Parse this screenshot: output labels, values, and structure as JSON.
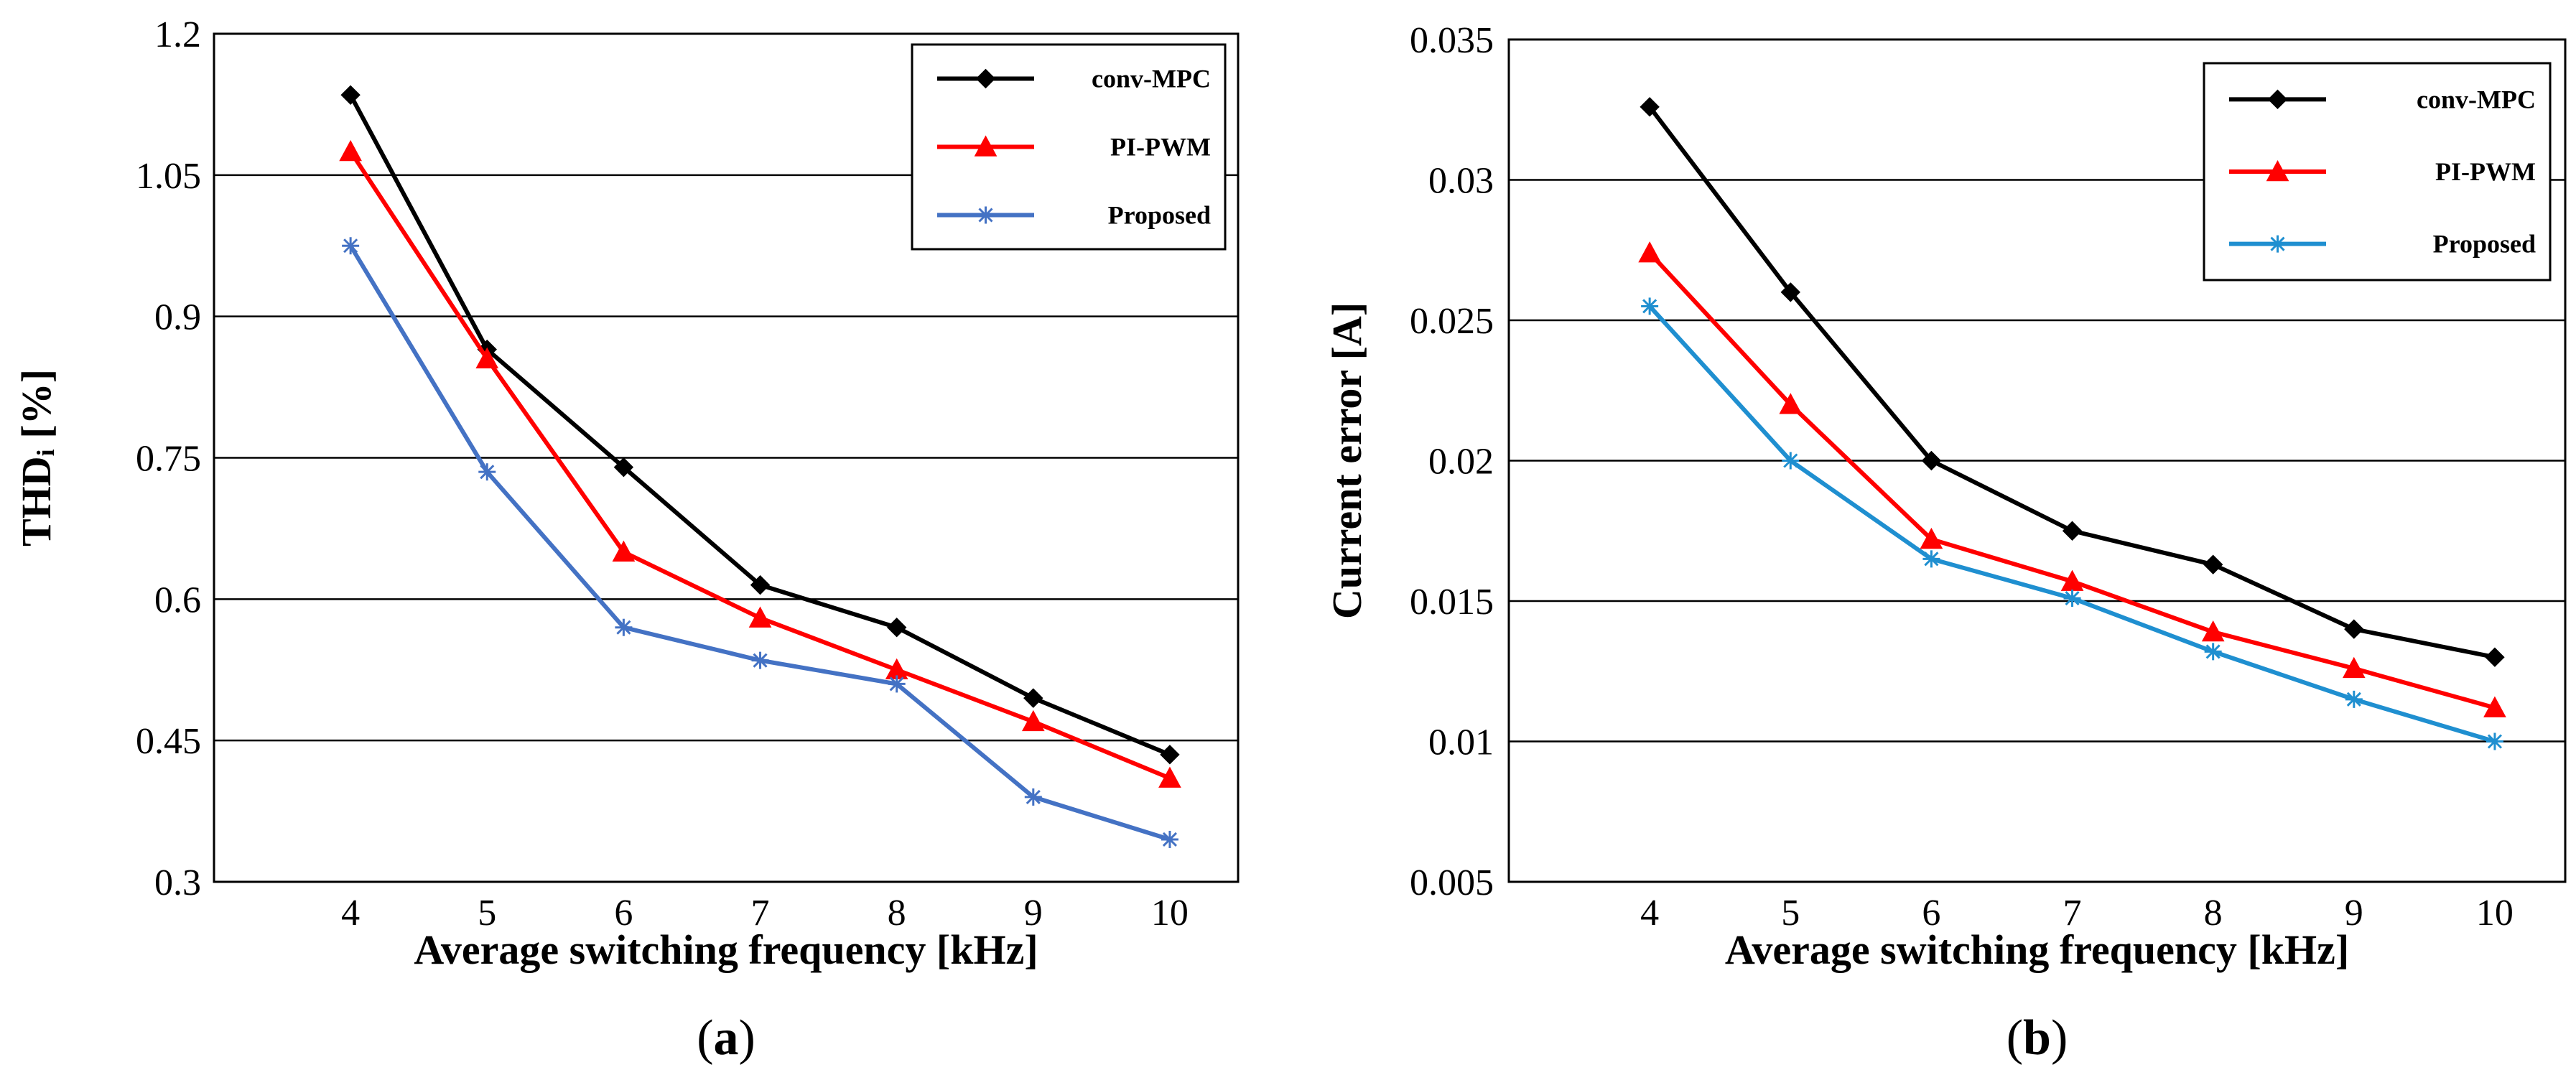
{
  "chart_data": [
    {
      "type": "line",
      "panel": "a",
      "caption_prefix": "(",
      "caption_letter": "a",
      "caption_suffix": ")",
      "xlabel": "Average switching frequency [kHz]",
      "ylabel": "THDᵢ [%]",
      "x": [
        4,
        5,
        6,
        7,
        8,
        9,
        10
      ],
      "xlim": [
        3,
        10.5
      ],
      "ylim": [
        0.3,
        1.2
      ],
      "yticks": [
        0.3,
        0.45,
        0.6,
        0.75,
        0.9,
        1.05,
        1.2
      ],
      "ytick_labels": [
        "0.3",
        "0.45",
        "0.6",
        "0.75",
        "0.9",
        "1.05",
        "1.2"
      ],
      "xtick_labels": [
        "4",
        "5",
        "6",
        "7",
        "8",
        "9",
        "10"
      ],
      "grid": "horizontal",
      "legend_position": "top-right",
      "series": [
        {
          "name": "conv-MPC",
          "color": "#000000",
          "marker": "diamond",
          "values": [
            1.135,
            0.865,
            0.74,
            0.615,
            0.57,
            0.495,
            0.435
          ]
        },
        {
          "name": "PI-PWM",
          "color": "#ff0000",
          "marker": "triangle",
          "values": [
            1.075,
            0.855,
            0.65,
            0.58,
            0.525,
            0.47,
            0.41
          ]
        },
        {
          "name": "Proposed",
          "color": "#4472c4",
          "marker": "star",
          "values": [
            0.975,
            0.735,
            0.57,
            0.535,
            0.51,
            0.39,
            0.345
          ]
        }
      ]
    },
    {
      "type": "line",
      "panel": "b",
      "caption_prefix": "(",
      "caption_letter": "b",
      "caption_suffix": ")",
      "xlabel": "Average switching frequency [kHz]",
      "ylabel": "Current error [A]",
      "x": [
        4,
        5,
        6,
        7,
        8,
        9,
        10
      ],
      "xlim": [
        3,
        10.5
      ],
      "ylim": [
        0.005,
        0.035
      ],
      "yticks": [
        0.005,
        0.01,
        0.015,
        0.02,
        0.025,
        0.03,
        0.035
      ],
      "ytick_labels": [
        "0.005",
        "0.01",
        "0.015",
        "0.02",
        "0.025",
        "0.03",
        "0.035"
      ],
      "xtick_labels": [
        "4",
        "5",
        "6",
        "7",
        "8",
        "9",
        "10"
      ],
      "grid": "horizontal",
      "legend_position": "top-right",
      "series": [
        {
          "name": "conv-MPC",
          "color": "#000000",
          "marker": "diamond",
          "values": [
            0.0326,
            0.026,
            0.02,
            0.0175,
            0.0163,
            0.014,
            0.013
          ]
        },
        {
          "name": "PI-PWM",
          "color": "#ff0000",
          "marker": "triangle",
          "values": [
            0.0274,
            0.022,
            0.0172,
            0.0157,
            0.0139,
            0.0126,
            0.0112
          ]
        },
        {
          "name": "Proposed",
          "color": "#1f8fd0",
          "marker": "star",
          "values": [
            0.0255,
            0.02,
            0.0165,
            0.0151,
            0.0132,
            0.0115,
            0.01
          ]
        }
      ]
    }
  ]
}
